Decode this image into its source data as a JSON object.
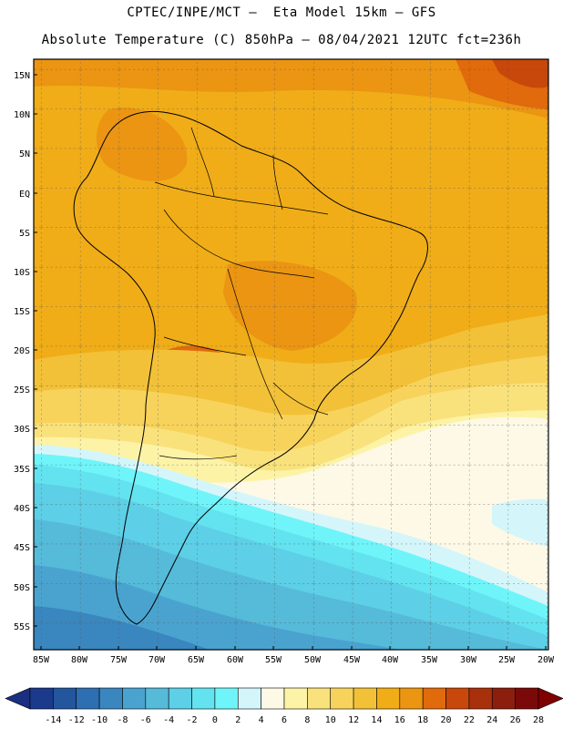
{
  "header": {
    "line1": "CPTEC/INPE/MCT –  Eta Model 15km – GFS",
    "line2": "Absolute Temperature (C) 850hPa – 08/04/2021 12UTC fct=236h"
  },
  "axes": {
    "lat_labels": [
      "15N",
      "10N",
      "5N",
      "EQ",
      "5S",
      "10S",
      "15S",
      "20S",
      "25S",
      "30S",
      "35S",
      "40S",
      "45S",
      "50S",
      "55S"
    ],
    "lon_labels": [
      "85W",
      "80W",
      "75W",
      "70W",
      "65W",
      "60W",
      "55W",
      "50W",
      "45W",
      "40W",
      "35W",
      "30W",
      "25W",
      "20W"
    ]
  },
  "colorbar": {
    "colors": [
      "#1c3a8c",
      "#23569d",
      "#2d6fb0",
      "#3a86bf",
      "#4aa3cf",
      "#56bad9",
      "#5dcfe6",
      "#63e2ef",
      "#6ff5f9",
      "#d4f6fb",
      "#fdf9e6",
      "#fdf3a7",
      "#f9e27c",
      "#f7d35c",
      "#f2c138",
      "#f0ad18",
      "#eb9513",
      "#e06a0c",
      "#c8470a",
      "#a8300a",
      "#8c1e0e",
      "#7a0a0a"
    ],
    "under_color": "#1a2f80",
    "over_color": "#800000",
    "ticks": [
      "-14",
      "-12",
      "-10",
      "-8",
      "-6",
      "-4",
      "-2",
      "0",
      "2",
      "4",
      "6",
      "8",
      "10",
      "12",
      "14",
      "16",
      "18",
      "20",
      "22",
      "24",
      "26",
      "28"
    ]
  }
}
